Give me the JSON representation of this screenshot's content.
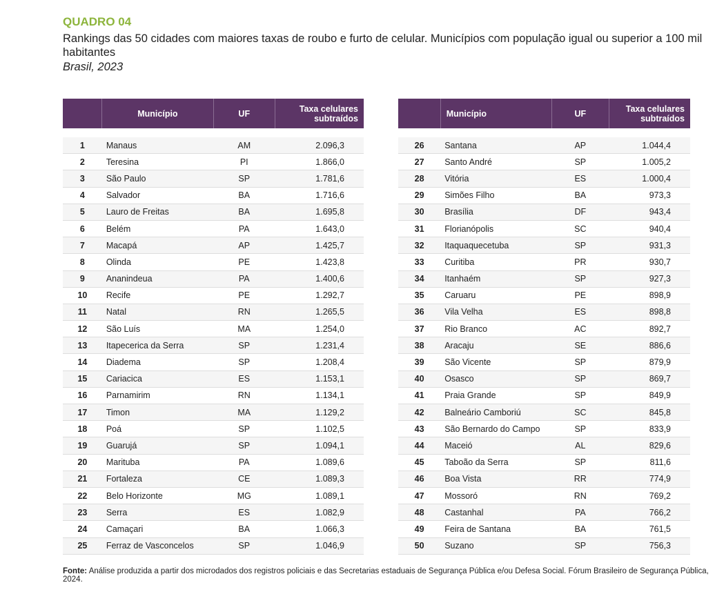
{
  "header": {
    "label": "QUADRO 04",
    "title": "Rankings das 50 cidades com maiores taxas de roubo e furto de celular. Municípios com população igual ou superior a 100 mil habitantes",
    "subtitle": "Brasil, 2023"
  },
  "tables": [
    {
      "columns": [
        "Município",
        "UF",
        "Taxa celulares subtraídos"
      ],
      "rows": [
        [
          "1",
          "Manaus",
          "AM",
          "2.096,3"
        ],
        [
          "2",
          "Teresina",
          "PI",
          "1.866,0"
        ],
        [
          "3",
          "São Paulo",
          "SP",
          "1.781,6"
        ],
        [
          "4",
          "Salvador",
          "BA",
          "1.716,6"
        ],
        [
          "5",
          "Lauro de Freitas",
          "BA",
          "1.695,8"
        ],
        [
          "6",
          "Belém",
          "PA",
          "1.643,0"
        ],
        [
          "7",
          "Macapá",
          "AP",
          "1.425,7"
        ],
        [
          "8",
          "Olinda",
          "PE",
          "1.423,8"
        ],
        [
          "9",
          "Ananindeua",
          "PA",
          "1.400,6"
        ],
        [
          "10",
          "Recife",
          "PE",
          "1.292,7"
        ],
        [
          "11",
          "Natal",
          "RN",
          "1.265,5"
        ],
        [
          "12",
          "São Luís",
          "MA",
          "1.254,0"
        ],
        [
          "13",
          "Itapecerica da Serra",
          "SP",
          "1.231,4"
        ],
        [
          "14",
          "Diadema",
          "SP",
          "1.208,4"
        ],
        [
          "15",
          "Cariacica",
          "ES",
          "1.153,1"
        ],
        [
          "16",
          "Parnamirim",
          "RN",
          "1.134,1"
        ],
        [
          "17",
          "Timon",
          "MA",
          "1.129,2"
        ],
        [
          "18",
          "Poá",
          "SP",
          "1.102,5"
        ],
        [
          "19",
          "Guarujá",
          "SP",
          "1.094,1"
        ],
        [
          "20",
          "Marituba",
          "PA",
          "1.089,6"
        ],
        [
          "21",
          "Fortaleza",
          "CE",
          "1.089,3"
        ],
        [
          "22",
          "Belo Horizonte",
          "MG",
          "1.089,1"
        ],
        [
          "23",
          "Serra",
          "ES",
          "1.082,9"
        ],
        [
          "24",
          "Camaçari",
          "BA",
          "1.066,3"
        ],
        [
          "25",
          "Ferraz de Vasconcelos",
          "SP",
          "1.046,9"
        ]
      ]
    },
    {
      "columns": [
        "Município",
        "UF",
        "Taxa celulares subtraídos"
      ],
      "rows": [
        [
          "26",
          "Santana",
          "AP",
          "1.044,4"
        ],
        [
          "27",
          "Santo André",
          "SP",
          "1.005,2"
        ],
        [
          "28",
          "Vitória",
          "ES",
          "1.000,4"
        ],
        [
          "29",
          "Simões Filho",
          "BA",
          "973,3"
        ],
        [
          "30",
          "Brasília",
          "DF",
          "943,4"
        ],
        [
          "31",
          "Florianópolis",
          "SC",
          "940,4"
        ],
        [
          "32",
          "Itaquaquecetuba",
          "SP",
          "931,3"
        ],
        [
          "33",
          "Curitiba",
          "PR",
          "930,7"
        ],
        [
          "34",
          "Itanhaém",
          "SP",
          "927,3"
        ],
        [
          "35",
          "Caruaru",
          "PE",
          "898,9"
        ],
        [
          "36",
          "Vila Velha",
          "ES",
          "898,8"
        ],
        [
          "37",
          "Rio Branco",
          "AC",
          "892,7"
        ],
        [
          "38",
          "Aracaju",
          "SE",
          "886,6"
        ],
        [
          "39",
          "São Vicente",
          "SP",
          "879,9"
        ],
        [
          "40",
          "Osasco",
          "SP",
          "869,7"
        ],
        [
          "41",
          "Praia Grande",
          "SP",
          "849,9"
        ],
        [
          "42",
          "Balneário Camboriú",
          "SC",
          "845,8"
        ],
        [
          "43",
          "São Bernardo do Campo",
          "SP",
          "833,9"
        ],
        [
          "44",
          "Maceió",
          "AL",
          "829,6"
        ],
        [
          "45",
          "Taboão da Serra",
          "SP",
          "811,6"
        ],
        [
          "46",
          "Boa Vista",
          "RR",
          "774,9"
        ],
        [
          "47",
          "Mossoró",
          "RN",
          "769,2"
        ],
        [
          "48",
          "Castanhal",
          "PA",
          "766,2"
        ],
        [
          "49",
          "Feira de Santana",
          "BA",
          "761,5"
        ],
        [
          "50",
          "Suzano",
          "SP",
          "756,3"
        ]
      ]
    }
  ],
  "footer": {
    "label": "Fonte:",
    "text": "Análise produzida a partir dos microdados dos registros policiais e das Secretarias estaduais de Segurança Pública e/ou Defesa Social. Fórum Brasileiro de Segurança Pública, 2024."
  }
}
